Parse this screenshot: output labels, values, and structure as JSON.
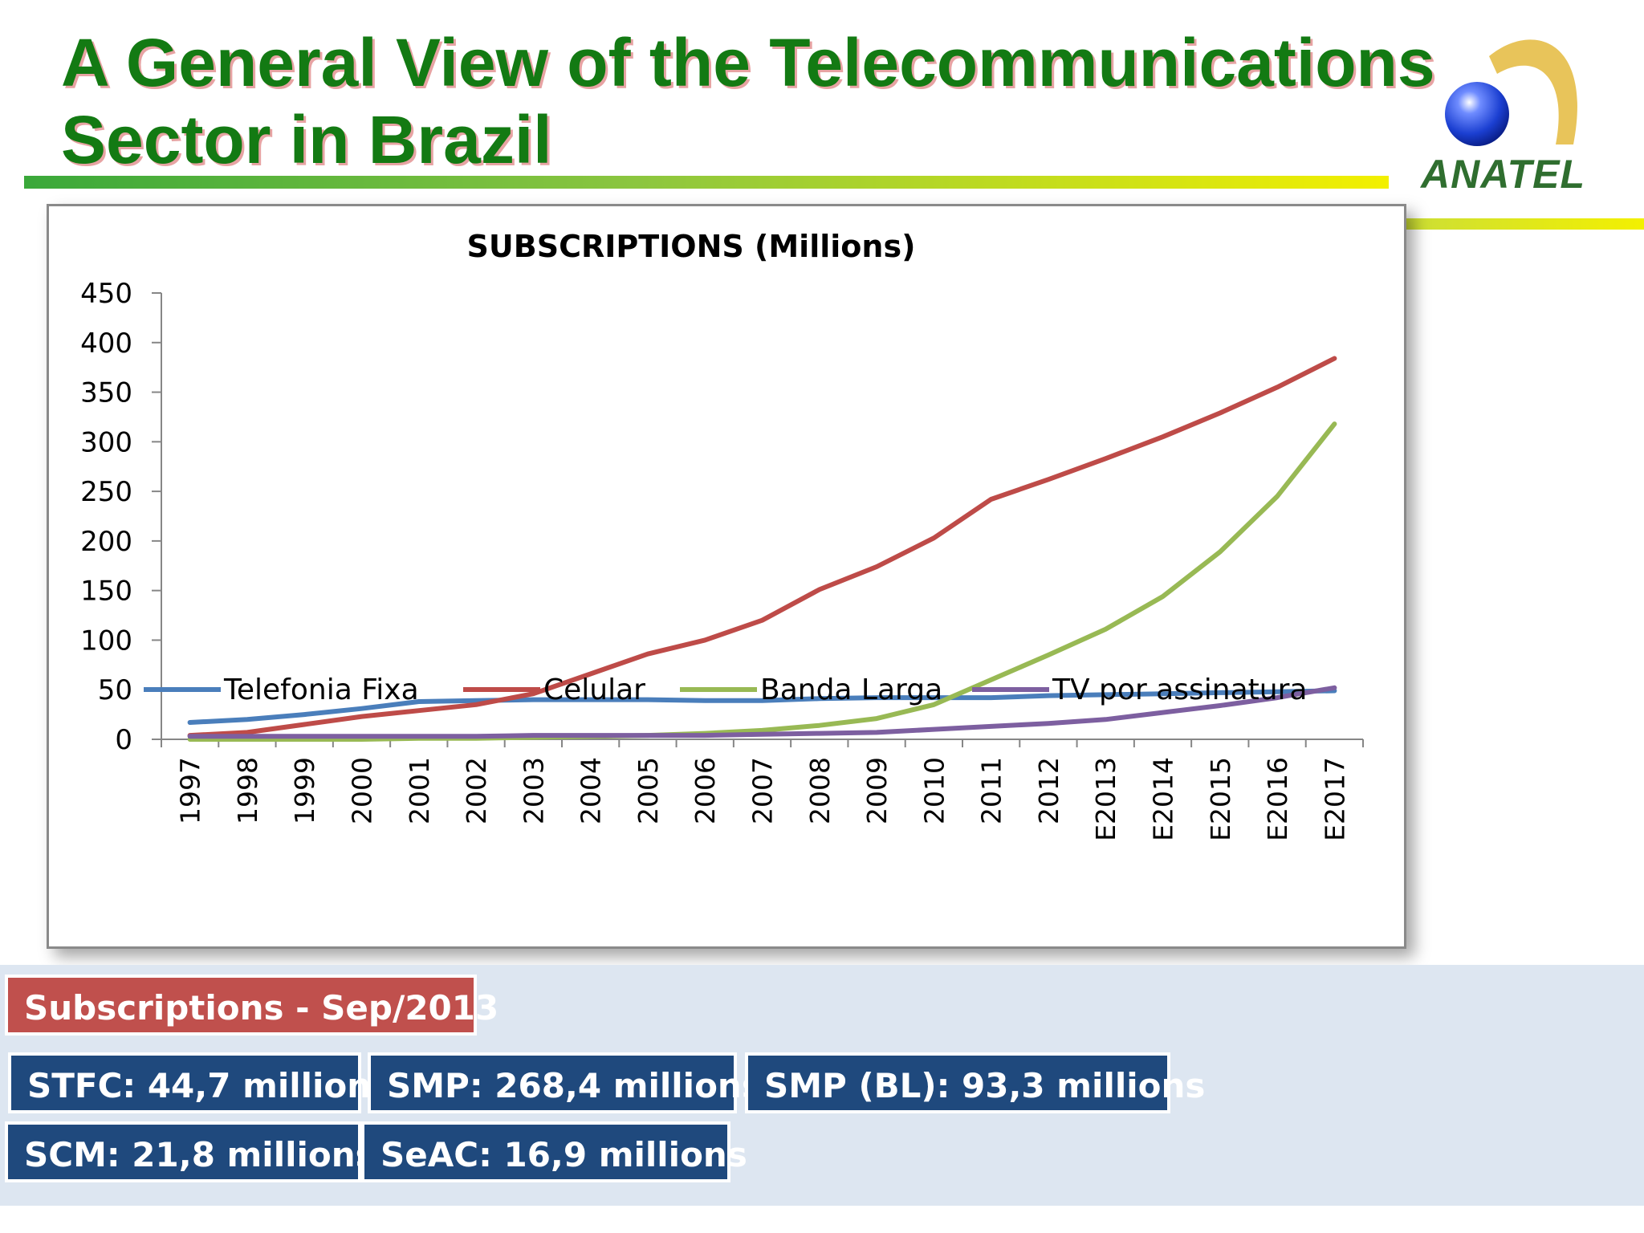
{
  "slide": {
    "title_line1": "A General View of the Telecommunications",
    "title_line2": "Sector in Brazil",
    "logo_text": "ANATEL"
  },
  "colors": {
    "title_green": "#137a13",
    "telefonia_fixa": "#4a7ebb",
    "celular": "#be4b48",
    "banda_larga": "#98b954",
    "tv_por_assinatura": "#7d5fa0",
    "header_box": "#c0504d",
    "stat_box": "#1f497d"
  },
  "chart_data": {
    "type": "line",
    "title": "SUBSCRIPTIONS (Millions)",
    "xlabel": "",
    "ylabel": "",
    "ylim": [
      0,
      450
    ],
    "yticks": [
      0,
      50,
      100,
      150,
      200,
      250,
      300,
      350,
      400,
      450
    ],
    "grid": false,
    "legend_position": "bottom",
    "categories": [
      "1997",
      "1998",
      "1999",
      "2000",
      "2001",
      "2002",
      "2003",
      "2004",
      "2005",
      "2006",
      "2007",
      "2008",
      "2009",
      "2010",
      "2011",
      "2012",
      "E2013",
      "E2014",
      "E2015",
      "E2016",
      "E2017"
    ],
    "series": [
      {
        "name": "Telefonia Fixa",
        "color": "#4a7ebb",
        "values": [
          17,
          20,
          25,
          31,
          38,
          39,
          40,
          40,
          40,
          39,
          39,
          41,
          42,
          42,
          42,
          44,
          45,
          46,
          47,
          48,
          49
        ]
      },
      {
        "name": "Celular",
        "color": "#be4b48",
        "values": [
          4,
          7,
          15,
          23,
          29,
          35,
          46,
          66,
          86,
          100,
          120,
          151,
          174,
          203,
          242,
          262,
          283,
          305,
          329,
          355,
          384
        ]
      },
      {
        "name": "Banda Larga",
        "color": "#98b954",
        "values": [
          0,
          0,
          0,
          0,
          1,
          1,
          2,
          3,
          4,
          6,
          9,
          14,
          21,
          35,
          60,
          85,
          111,
          144,
          189,
          245,
          318
        ]
      },
      {
        "name": "TV por assinatura",
        "color": "#7d5fa0",
        "values": [
          3,
          3,
          3,
          3,
          3,
          3,
          4,
          4,
          4,
          4,
          5,
          6,
          7,
          10,
          13,
          16,
          20,
          27,
          34,
          42,
          52
        ]
      }
    ]
  },
  "stats": {
    "header": "Subscriptions - Sep/2013",
    "stfc": "STFC: 44,7 millions",
    "smp": "SMP: 268,4 millions",
    "smp_bl": "SMP (BL): 93,3 millions",
    "scm": "SCM: 21,8 millions",
    "seac": "SeAC: 16,9 millions"
  }
}
